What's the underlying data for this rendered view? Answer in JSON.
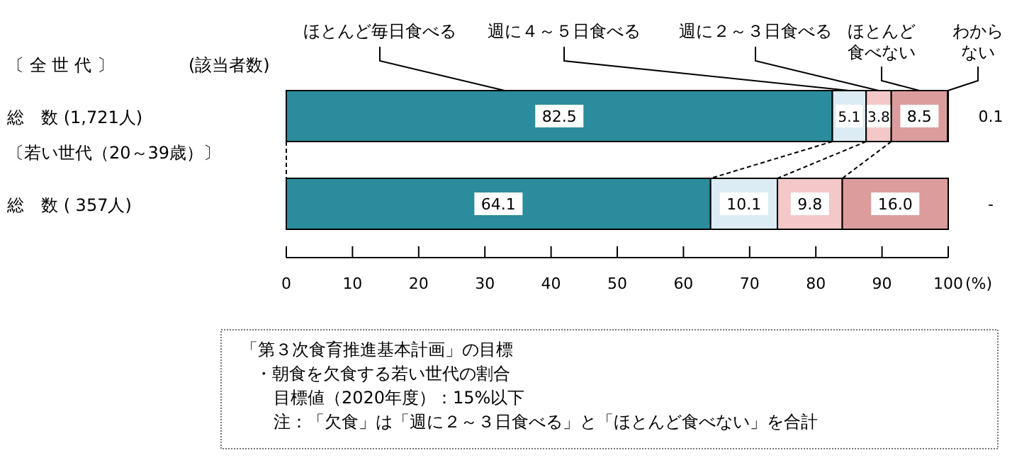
{
  "chart_data": {
    "type": "bar",
    "orientation": "horizontal",
    "stacked": true,
    "categories": [
      "総　数 (1,721人)",
      "総　数 ( 357人)"
    ],
    "series": [
      {
        "name": "ほとんど毎日食べる",
        "color": "#2a8c9c",
        "values": [
          82.5,
          64.1
        ],
        "value_labels": [
          "82.5",
          "64.1"
        ]
      },
      {
        "name": "週に４～５日食べる",
        "color": "#dcecf4",
        "values": [
          5.1,
          10.1
        ],
        "value_labels": [
          "5.1",
          "10.1"
        ]
      },
      {
        "name": "週に２～３日食べる",
        "color": "#f4c8c8",
        "values": [
          3.8,
          9.8
        ],
        "value_labels": [
          "3.8",
          "9.8"
        ]
      },
      {
        "name": "ほとんど食べない",
        "color": "#dc9c9c",
        "values": [
          8.5,
          16.0
        ],
        "value_labels": [
          "8.5",
          "16.0"
        ]
      },
      {
        "name": "わからない",
        "color": "#ffffff",
        "values": [
          0.1,
          null
        ],
        "value_labels": [
          "0.1",
          "-"
        ]
      }
    ],
    "xlim": [
      0,
      100
    ],
    "xticks": [
      0,
      10,
      20,
      30,
      40,
      50,
      60,
      70,
      80,
      90,
      100
    ],
    "xlabel": "(%)",
    "legend": false,
    "grid": false,
    "annotations": [
      "〔 全 世 代 〕",
      "(該当者数)",
      "〔若い世代（20～39歳）〕",
      "「第３次食育推進基本計画」の目標",
      "・朝食を欠食する若い世代の割合",
      "目標値（2020年度）：15%以下",
      "注：「欠食」は「週に２～３日食べる」と「ほとんど食べない」を合計"
    ]
  }
}
